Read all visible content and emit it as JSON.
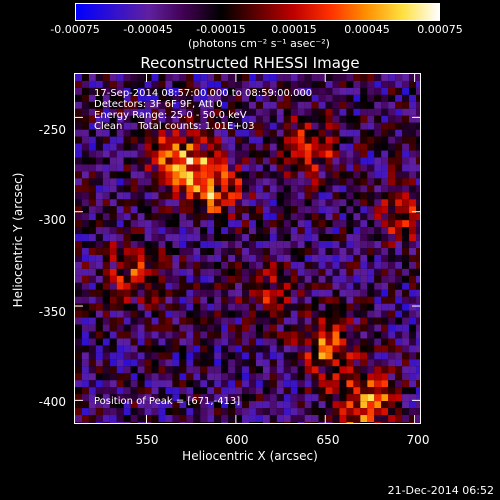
{
  "colorbar": {
    "ticks": [
      "-0.00075",
      "-0.00045",
      "-0.00015",
      "0.00015",
      "0.00045",
      "0.00075"
    ],
    "unit": "(photons cm⁻² s⁻¹ asec⁻²)",
    "colors": [
      "#0000ff",
      "#3010d0",
      "#6020a0",
      "#400050",
      "#000000",
      "#600000",
      "#c00000",
      "#ff3000",
      "#ff9000",
      "#ffe040",
      "#ffffff"
    ]
  },
  "title": "Reconstructed RHESSI Image",
  "info": {
    "time": "17-Sep-2014 08:57:00.000 to 08:59:00.000",
    "detectors": "Detectors: 3F 6F 9F, Att 0",
    "energy": "Energy Range: 25.0 - 50.0 keV",
    "clean": "Clean     Total counts: 1.01E+03"
  },
  "peak": "Position of Peak = [671,-413]",
  "axes": {
    "xlabel": "Heliocentric X (arcsec)",
    "ylabel": "Heliocentric Y (arcsec)",
    "xticks": [
      "550",
      "600",
      "650",
      "700"
    ],
    "yticks": [
      "-250",
      "-300",
      "-350",
      "-400"
    ],
    "xlim": [
      510,
      703
    ],
    "ylim": [
      -227,
      -412
    ]
  },
  "timestamp": "21-Dec-2014 06:52",
  "chart_data": {
    "type": "heatmap",
    "title": "Reconstructed RHESSI Image",
    "xlabel": "Heliocentric X (arcsec)",
    "ylabel": "Heliocentric Y (arcsec)",
    "xlim": [
      510,
      703
    ],
    "ylim": [
      -227,
      -412
    ],
    "clim": [
      -0.00075,
      0.00075
    ],
    "peak": [
      671,
      -413
    ],
    "hotspots": [
      {
        "x": 565,
        "y": -270,
        "level": 0.85
      },
      {
        "x": 585,
        "y": -285,
        "level": 0.75
      },
      {
        "x": 640,
        "y": -265,
        "level": 0.6
      },
      {
        "x": 650,
        "y": -370,
        "level": 0.7
      },
      {
        "x": 671,
        "y": -400,
        "level": 1.0
      },
      {
        "x": 540,
        "y": -330,
        "level": 0.55
      },
      {
        "x": 615,
        "y": -340,
        "level": 0.5
      },
      {
        "x": 690,
        "y": -300,
        "level": 0.45
      }
    ]
  }
}
